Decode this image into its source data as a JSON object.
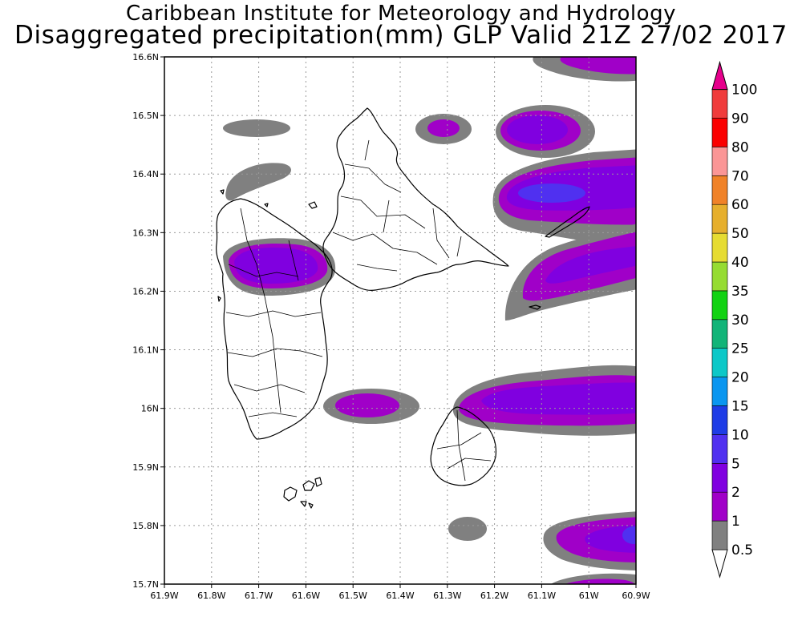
{
  "title": {
    "line1": "Caribbean Institute for Meteorology and Hydrology",
    "line2": "Disaggregated precipitation(mm) GLP Valid 21Z 27/02 2017"
  },
  "axes": {
    "lon_range": [
      -61.9,
      -60.9
    ],
    "lat_range": [
      15.7,
      16.6
    ],
    "x_ticks": [
      {
        "value": -61.9,
        "label": "61.9W"
      },
      {
        "value": -61.8,
        "label": "61.8W"
      },
      {
        "value": -61.7,
        "label": "61.7W"
      },
      {
        "value": -61.6,
        "label": "61.6W"
      },
      {
        "value": -61.5,
        "label": "61.5W"
      },
      {
        "value": -61.4,
        "label": "61.4W"
      },
      {
        "value": -61.3,
        "label": "61.3W"
      },
      {
        "value": -61.2,
        "label": "61.2W"
      },
      {
        "value": -61.1,
        "label": "61.1W"
      },
      {
        "value": -61.0,
        "label": "61W"
      },
      {
        "value": -60.9,
        "label": "60.9W"
      }
    ],
    "y_ticks": [
      {
        "value": 15.7,
        "label": "15.7N"
      },
      {
        "value": 15.8,
        "label": "15.8N"
      },
      {
        "value": 15.9,
        "label": "15.9N"
      },
      {
        "value": 16.0,
        "label": "16N"
      },
      {
        "value": 16.1,
        "label": "16.1N"
      },
      {
        "value": 16.2,
        "label": "16.2N"
      },
      {
        "value": 16.3,
        "label": "16.3N"
      },
      {
        "value": 16.4,
        "label": "16.4N"
      },
      {
        "value": 16.5,
        "label": "16.5N"
      },
      {
        "value": 16.6,
        "label": "16.6N"
      }
    ],
    "grid": true
  },
  "colorbar": {
    "levels": [
      {
        "label": "0.5",
        "color": "#ffffff"
      },
      {
        "label": "1",
        "color": "#808080"
      },
      {
        "label": "2",
        "color": "#a000c8"
      },
      {
        "label": "5",
        "color": "#8000e0"
      },
      {
        "label": "10",
        "color": "#5030f0"
      },
      {
        "label": "15",
        "color": "#1e3ce6"
      },
      {
        "label": "20",
        "color": "#0a96f0"
      },
      {
        "label": "25",
        "color": "#0cc8c8"
      },
      {
        "label": "30",
        "color": "#12b478"
      },
      {
        "label": "35",
        "color": "#12d212"
      },
      {
        "label": "40",
        "color": "#96dc32"
      },
      {
        "label": "50",
        "color": "#e6dc32"
      },
      {
        "label": "60",
        "color": "#e6af2d"
      },
      {
        "label": "70",
        "color": "#f08228"
      },
      {
        "label": "80",
        "color": "#fa9696"
      },
      {
        "label": "90",
        "color": "#fa0000"
      },
      {
        "label": "100",
        "color": "#f03c3c"
      }
    ],
    "over_color": "#e6008c"
  },
  "chart_data": {
    "type": "heatmap",
    "variable": "Disaggregated precipitation (mm)",
    "cells": [
      {
        "lon": -61.7,
        "lat": 16.48,
        "level": "0.5-1"
      },
      {
        "lon": -61.71,
        "lat": 16.41,
        "level": "0.5-1"
      },
      {
        "lon": -61.65,
        "lat": 16.245,
        "level": "2-5"
      },
      {
        "lon": -61.32,
        "lat": 16.48,
        "level": "2-5"
      },
      {
        "lon": -61.09,
        "lat": 16.48,
        "level": "2-5"
      },
      {
        "lon": -60.97,
        "lat": 16.58,
        "level": "2-5"
      },
      {
        "lon": -61.02,
        "lat": 16.37,
        "level": "5-10"
      },
      {
        "lon": -61.03,
        "lat": 16.23,
        "level": "2-5"
      },
      {
        "lon": -61.48,
        "lat": 16.0,
        "level": "2-5"
      },
      {
        "lon": -61.05,
        "lat": 16.01,
        "level": "2-5"
      },
      {
        "lon": -61.27,
        "lat": 15.79,
        "level": "0.5-1"
      },
      {
        "lon": -60.97,
        "lat": 15.78,
        "level": "2-5"
      },
      {
        "lon": -61.05,
        "lat": 15.7,
        "level": "2-5"
      }
    ]
  }
}
